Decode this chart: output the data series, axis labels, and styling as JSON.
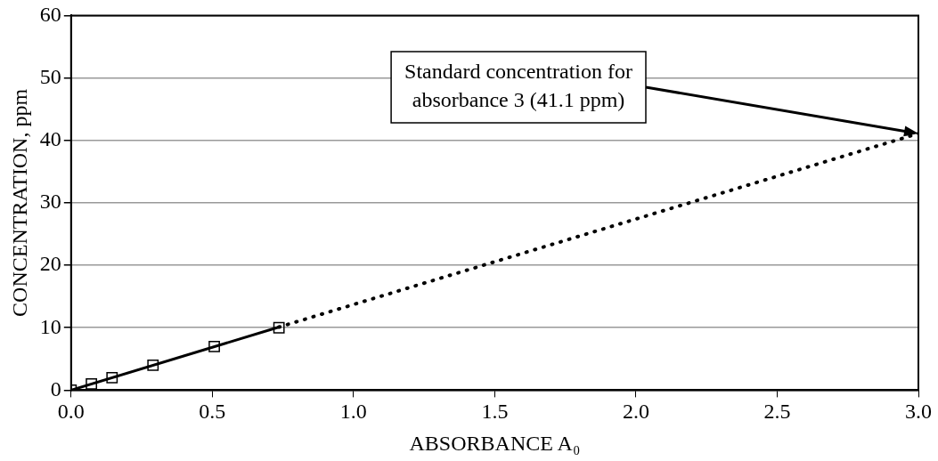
{
  "chart_data": {
    "type": "scatter",
    "xlabel": "ABSORBANCE A₀",
    "ylabel": "CONCENTRATION, ppm",
    "xlim": [
      0,
      3
    ],
    "ylim": [
      0,
      60
    ],
    "xticks": [
      {
        "value": 0,
        "label": "0.0"
      },
      {
        "value": 0.5,
        "label": "0.5"
      },
      {
        "value": 1,
        "label": "1.0"
      },
      {
        "value": 1.5,
        "label": "1.5"
      },
      {
        "value": 2,
        "label": "2.0"
      },
      {
        "value": 2.5,
        "label": "2.5"
      },
      {
        "value": 3,
        "label": "3.0"
      }
    ],
    "yticks": [
      0,
      10,
      20,
      30,
      40,
      50,
      60
    ],
    "grid": "y",
    "legend": false,
    "series": [
      {
        "type": "scatter",
        "color": "#000000",
        "marker": "square",
        "x": [
          0,
          0.072,
          0.145,
          0.29,
          0.507,
          0.736
        ],
        "values": [
          0,
          1,
          2,
          4,
          7,
          10
        ]
      },
      {
        "type": "line",
        "color": "#000000",
        "marker": "none",
        "line_style": "solid",
        "x": [
          0,
          0.736
        ],
        "values": [
          0,
          10.1
        ]
      },
      {
        "type": "line",
        "color": "#000000",
        "marker": "none",
        "line_style": "dotted",
        "x": [
          0.736,
          3
        ],
        "values": [
          10.1,
          41.1
        ]
      }
    ],
    "annotations": [
      "Standard concentration for\nabsorbance 3 (41.1 ppm)"
    ]
  }
}
